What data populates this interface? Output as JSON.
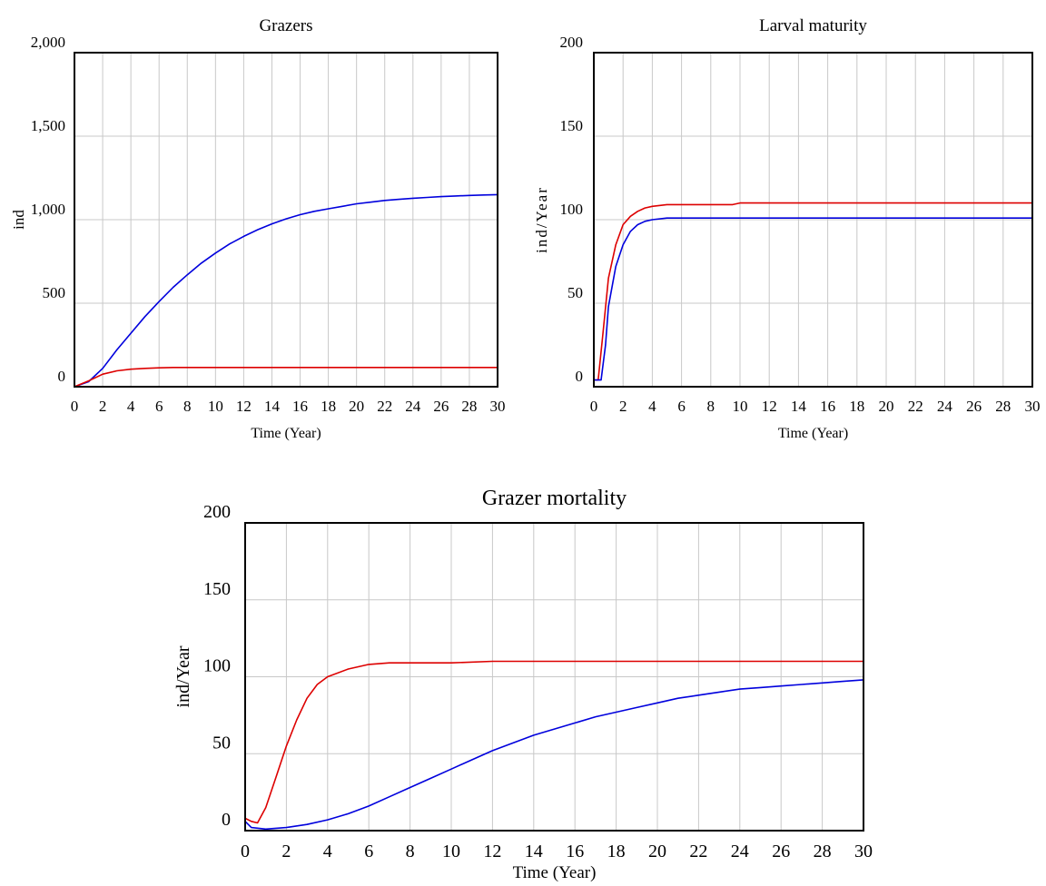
{
  "chart_data": [
    {
      "type": "line",
      "title": "Grazers",
      "xlabel": "Time (Year)",
      "ylabel": "ind",
      "xlim": [
        0,
        30
      ],
      "ylim": [
        0,
        2000
      ],
      "grid": true,
      "x_ticks": [
        "0",
        "2",
        "4",
        "6",
        "8",
        "10",
        "12",
        "14",
        "16",
        "18",
        "20",
        "22",
        "24",
        "26",
        "28",
        "30"
      ],
      "y_ticks": [
        "0",
        "500",
        "1,000",
        "1,500",
        "2,000"
      ],
      "series": [
        {
          "color": "#0000dd",
          "x": [
            0,
            1,
            2,
            3,
            4,
            5,
            6,
            7,
            8,
            9,
            10,
            11,
            12,
            13,
            14,
            15,
            16,
            17,
            18,
            19,
            20,
            21,
            22,
            23,
            24,
            25,
            26,
            27,
            28,
            29,
            30
          ],
          "y": [
            0,
            30,
            110,
            220,
            320,
            420,
            510,
            595,
            670,
            740,
            800,
            855,
            900,
            940,
            975,
            1005,
            1030,
            1050,
            1065,
            1080,
            1095,
            1105,
            1115,
            1122,
            1128,
            1133,
            1138,
            1142,
            1145,
            1148,
            1150
          ]
        },
        {
          "color": "#dd0000",
          "x": [
            0,
            1,
            2,
            3,
            4,
            5,
            6,
            7,
            8,
            10,
            15,
            20,
            25,
            30
          ],
          "y": [
            0,
            35,
            75,
            95,
            105,
            110,
            113,
            115,
            115,
            115,
            115,
            115,
            115,
            115
          ]
        }
      ]
    },
    {
      "type": "line",
      "title": "Larval maturity",
      "xlabel": "Time (Year)",
      "ylabel": "ind/Year",
      "xlim": [
        0,
        30
      ],
      "ylim": [
        0,
        200
      ],
      "grid": true,
      "x_ticks": [
        "0",
        "2",
        "4",
        "6",
        "8",
        "10",
        "12",
        "14",
        "16",
        "18",
        "20",
        "22",
        "24",
        "26",
        "28",
        "30"
      ],
      "y_ticks": [
        "0",
        "50",
        "100",
        "150",
        "200"
      ],
      "series": [
        {
          "color": "#dd0000",
          "x": [
            0,
            0.3,
            0.6,
            1,
            1.5,
            2,
            2.5,
            3,
            3.5,
            4,
            5,
            6,
            9.5,
            10,
            15,
            20,
            25,
            30
          ],
          "y": [
            4,
            4,
            30,
            65,
            85,
            97,
            102,
            105,
            107,
            108,
            109,
            109,
            109,
            110,
            110,
            110,
            110,
            110
          ]
        },
        {
          "color": "#0000dd",
          "x": [
            0,
            0.5,
            0.8,
            1,
            1.5,
            2,
            2.5,
            3,
            3.5,
            4,
            5,
            6,
            10,
            15,
            20,
            25,
            30
          ],
          "y": [
            4,
            4,
            25,
            48,
            72,
            85,
            93,
            97,
            99,
            100,
            101,
            101,
            101,
            101,
            101,
            101,
            101
          ]
        }
      ]
    },
    {
      "type": "line",
      "title": "Grazer mortality",
      "xlabel": "Time (Year)",
      "ylabel": "ind/Year",
      "xlim": [
        0,
        30
      ],
      "ylim": [
        0,
        200
      ],
      "grid": true,
      "x_ticks": [
        "0",
        "2",
        "4",
        "6",
        "8",
        "10",
        "12",
        "14",
        "16",
        "18",
        "20",
        "22",
        "24",
        "26",
        "28",
        "30"
      ],
      "y_ticks": [
        "0",
        "50",
        "100",
        "150",
        "200"
      ],
      "series": [
        {
          "color": "#dd0000",
          "x": [
            0,
            0.3,
            0.6,
            1,
            1.5,
            2,
            2.5,
            3,
            3.5,
            4,
            5,
            6,
            7,
            8,
            10,
            12,
            15,
            20,
            25,
            30
          ],
          "y": [
            8,
            6,
            5,
            15,
            35,
            55,
            72,
            86,
            95,
            100,
            105,
            108,
            109,
            109,
            109,
            110,
            110,
            110,
            110,
            110
          ]
        },
        {
          "color": "#0000dd",
          "x": [
            0,
            0.3,
            1,
            2,
            3,
            4,
            5,
            6,
            7,
            8,
            9,
            10,
            11,
            12,
            13,
            14,
            15,
            16,
            17,
            18,
            19,
            20,
            21,
            22,
            23,
            24,
            25,
            26,
            27,
            28,
            29,
            30
          ],
          "y": [
            6,
            2,
            1,
            2,
            4,
            7,
            11,
            16,
            22,
            28,
            34,
            40,
            46,
            52,
            57,
            62,
            66,
            70,
            74,
            77,
            80,
            83,
            86,
            88,
            90,
            92,
            93,
            94,
            95,
            96,
            97,
            98
          ]
        }
      ]
    }
  ]
}
